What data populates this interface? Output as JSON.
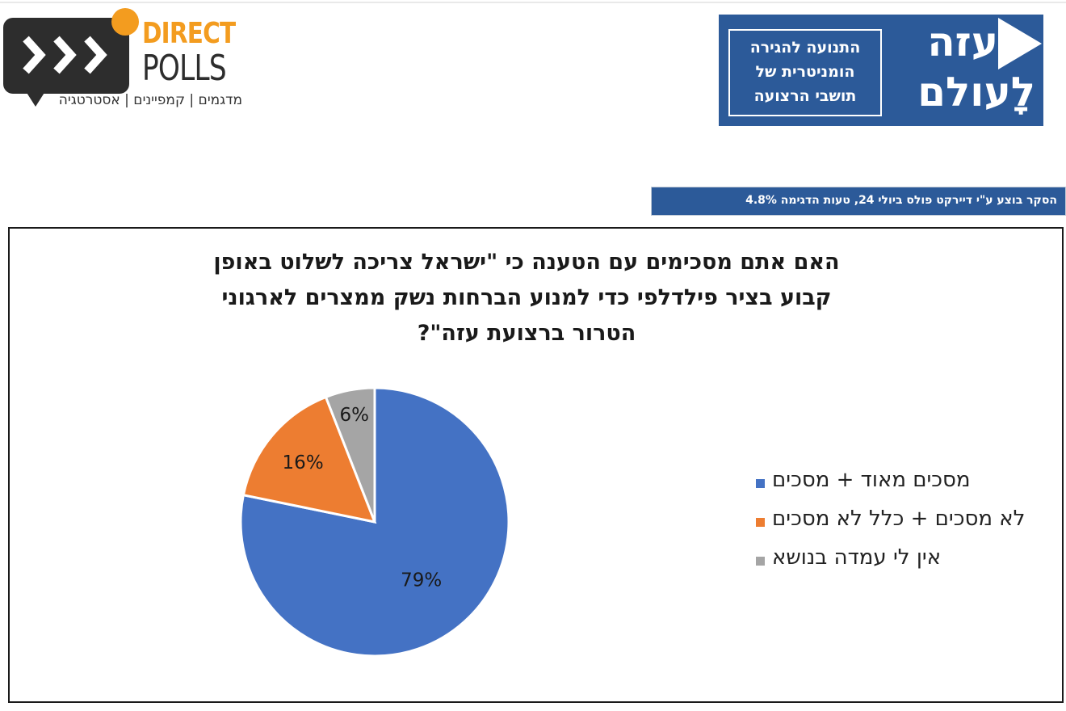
{
  "logos": {
    "direct_polls": {
      "word1": "DIRECT",
      "word2": "POLLS",
      "tagline": "מדגמים | קמפיינים | אסטרטגיה",
      "colors": {
        "orange": "#f39c1f",
        "dark": "#2d2d2d"
      }
    },
    "gaza_olam": {
      "big_line1": "עזה",
      "big_line2": "לָעולם",
      "small_line1": "התנועה להגירה",
      "small_line2": "הומניטרית של",
      "small_line3": "תושבי הרצועה",
      "color": "#2c5a99"
    }
  },
  "survey_note": "הסקר בוצע ע\"י דיירקט פולס ביולי 24, טעות הדגימה 4.8%",
  "chart_data": {
    "type": "pie",
    "title_lines": [
      "האם אתם מסכימים עם הטענה כי \"ישראל צריכה לשלוט באופן",
      "קבוע בציר פילדלפי כדי למנוע הברחות נשק ממצרים לארגוני",
      "הטרור ברצועת עזה\"?"
    ],
    "slices": [
      {
        "label": "מסכים מאוד + מסכים",
        "value": 79,
        "value_label": "79%",
        "color": "#4472c4"
      },
      {
        "label": "לא מסכים + כלל לא מסכים",
        "value": 16,
        "value_label": "16%",
        "color": "#ed7d31"
      },
      {
        "label": "אין לי עמדה בנושא",
        "value": 6,
        "value_label": "6%",
        "color": "#a5a5a5"
      }
    ],
    "legend_position": "right"
  }
}
